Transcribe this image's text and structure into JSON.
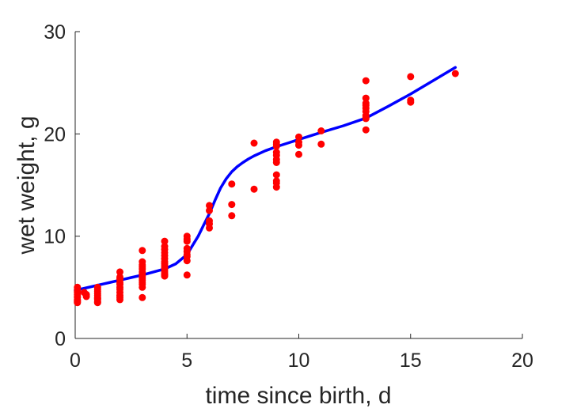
{
  "chart_data": {
    "type": "scatter",
    "title": "",
    "xlabel": "time since birth, d",
    "ylabel": "wet weight, g",
    "xlim": [
      0,
      20
    ],
    "ylim": [
      0,
      30
    ],
    "xticks": [
      "0",
      "5",
      "10",
      "15",
      "20"
    ],
    "yticks": [
      "0",
      "10",
      "20",
      "30"
    ],
    "grid": false,
    "legend": "none",
    "colors": {
      "points": "#ff0000",
      "fit": "#0000ff",
      "axes": "#262626"
    },
    "series": [
      {
        "type": "scatter",
        "x": [
          0.1,
          0.1,
          0.1,
          0.1,
          0.1,
          0.1,
          0.1,
          0.1,
          0.1,
          0.1,
          0.1,
          0.4,
          0.5,
          0.5,
          1,
          1,
          1,
          1,
          1,
          1,
          1,
          1,
          1,
          1,
          2,
          2,
          2,
          2,
          2,
          2,
          2,
          2,
          2,
          2,
          2,
          3,
          3,
          3,
          3,
          3,
          3,
          3,
          3,
          3,
          3,
          3,
          3,
          3,
          3,
          4,
          4,
          4,
          4,
          4,
          4,
          4,
          4,
          4,
          4,
          4,
          4,
          4,
          4,
          4,
          5,
          5,
          5,
          5,
          5,
          5,
          5,
          5,
          5,
          6,
          6,
          6,
          6,
          6,
          7,
          7,
          7,
          8,
          8,
          9,
          9,
          9,
          9,
          9,
          9,
          9,
          9,
          9,
          9,
          9,
          10,
          10,
          10,
          10,
          11,
          11,
          13,
          13,
          13,
          13,
          13,
          13,
          13,
          13,
          13,
          13,
          15,
          15,
          15,
          17
        ],
        "y": [
          5.0,
          4.8,
          4.6,
          4.5,
          4.3,
          4.1,
          4.0,
          3.8,
          3.7,
          3.6,
          3.5,
          4.5,
          4.3,
          4.1,
          5.0,
          4.8,
          4.6,
          4.4,
          4.2,
          4.0,
          3.9,
          3.8,
          3.6,
          3.5,
          6.5,
          6.0,
          5.8,
          5.5,
          5.3,
          5.0,
          4.8,
          4.5,
          4.2,
          4.0,
          3.8,
          8.6,
          7.5,
          7.2,
          7.0,
          6.8,
          6.5,
          6.3,
          6.1,
          5.9,
          5.7,
          5.5,
          5.3,
          5.0,
          4.0,
          9.5,
          9.0,
          8.7,
          8.4,
          8.1,
          7.8,
          7.5,
          7.3,
          7.1,
          6.9,
          6.7,
          6.5,
          6.3,
          6.2,
          6.1,
          10.0,
          9.7,
          9.5,
          8.8,
          8.5,
          8.2,
          8.0,
          7.6,
          6.2,
          13.0,
          12.5,
          11.5,
          11.2,
          10.8,
          15.1,
          13.1,
          12.0,
          19.1,
          14.6,
          19.2,
          19.0,
          18.8,
          18.2,
          17.9,
          17.5,
          17.2,
          16.0,
          15.4,
          15.2,
          14.8,
          19.7,
          19.2,
          18.9,
          18.0,
          20.3,
          19.0,
          25.2,
          23.5,
          23.0,
          22.8,
          22.5,
          22.2,
          21.8,
          21.6,
          21.5,
          20.4,
          25.6,
          23.3,
          23.1,
          25.9
        ]
      },
      {
        "type": "line",
        "x": [
          0,
          0.5,
          1,
          1.5,
          2,
          2.5,
          3,
          3.5,
          4,
          4.5,
          5,
          5.25,
          5.5,
          5.75,
          6,
          6.25,
          6.5,
          6.75,
          7,
          7.25,
          7.5,
          7.75,
          8,
          8.5,
          9,
          9.5,
          10,
          10.5,
          11,
          12,
          13,
          14,
          15,
          16,
          17
        ],
        "y": [
          4.7,
          4.95,
          5.2,
          5.45,
          5.7,
          5.95,
          6.2,
          6.5,
          6.8,
          7.3,
          8.2,
          9.1,
          10.0,
          11.1,
          12.2,
          13.5,
          14.7,
          15.6,
          16.3,
          16.8,
          17.2,
          17.55,
          17.85,
          18.35,
          18.75,
          19.1,
          19.45,
          19.8,
          20.15,
          20.8,
          21.55,
          22.7,
          23.9,
          25.2,
          26.5
        ]
      }
    ]
  }
}
